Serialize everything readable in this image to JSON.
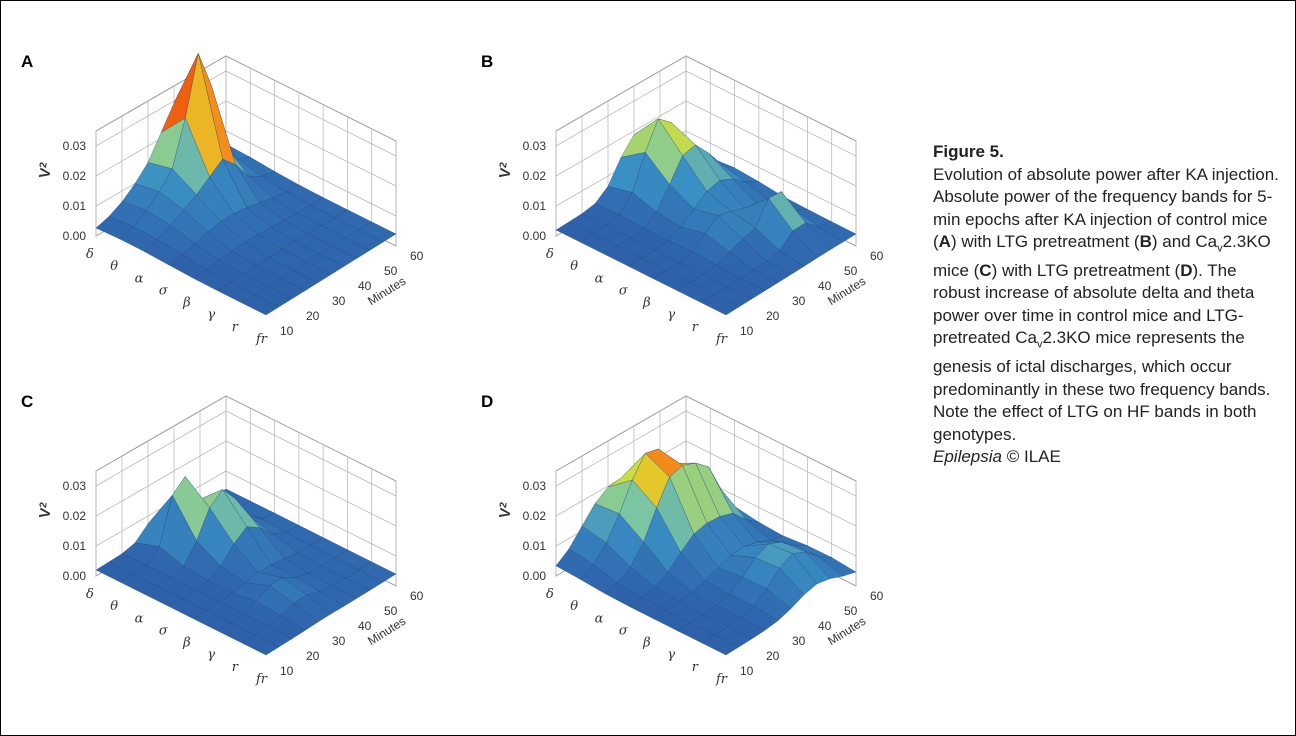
{
  "panels": [
    {
      "label": "A",
      "z_label": "V",
      "z_label_sup": "2",
      "z_ticks": [
        "0.00",
        "0.01",
        "0.02",
        "0.03"
      ],
      "band_ticks": [
        "δ",
        "θ",
        "α",
        "σ",
        "β",
        "γ",
        "r",
        "fr"
      ],
      "minute_ticks": [
        "10",
        "20",
        "30",
        "40",
        "50",
        "60"
      ],
      "minutes_label": "Minutes"
    },
    {
      "label": "B",
      "z_label": "V",
      "z_label_sup": "2",
      "z_ticks": [
        "0.00",
        "0.01",
        "0.02",
        "0.03"
      ],
      "band_ticks": [
        "δ",
        "θ",
        "α",
        "σ",
        "β",
        "γ",
        "r",
        "fr"
      ],
      "minute_ticks": [
        "10",
        "20",
        "30",
        "40",
        "50",
        "60"
      ],
      "minutes_label": "Minutes"
    },
    {
      "label": "C",
      "z_label": "V",
      "z_label_sup": "2",
      "z_ticks": [
        "0.00",
        "0.01",
        "0.02",
        "0.03"
      ],
      "band_ticks": [
        "δ",
        "θ",
        "α",
        "σ",
        "β",
        "γ",
        "r",
        "fr"
      ],
      "minute_ticks": [
        "10",
        "20",
        "30",
        "40",
        "50",
        "60"
      ],
      "minutes_label": "Minutes"
    },
    {
      "label": "D",
      "z_label": "V",
      "z_label_sup": "2",
      "z_ticks": [
        "0.00",
        "0.01",
        "0.02",
        "0.03"
      ],
      "band_ticks": [
        "δ",
        "θ",
        "α",
        "σ",
        "β",
        "γ",
        "r",
        "fr"
      ],
      "minute_ticks": [
        "10",
        "20",
        "30",
        "40",
        "50",
        "60"
      ],
      "minutes_label": "Minutes"
    }
  ],
  "caption": {
    "title": "Figure 5.",
    "pieces": [
      "Evolution of absolute power after KA injection. Absolute power of the frequency bands for 5-min epochs after KA injection of control mice (",
      "A",
      ") with LTG pretreatment (",
      "B",
      ") and Ca",
      "v",
      "2.3KO mice (",
      "C",
      ") with LTG pretreatment (",
      "D",
      "). The robust increase of absolute delta and theta power over time in control mice and LTG-pretreated Ca",
      "v",
      "2.3KO mice represents the genesis of ictal discharges, which occur predominantly in these two frequency bands. Note the effect of LTG on HF bands in both genotypes."
    ],
    "journal": "Epilepsia",
    "copyright": "©",
    "society": "ILAE"
  }
}
